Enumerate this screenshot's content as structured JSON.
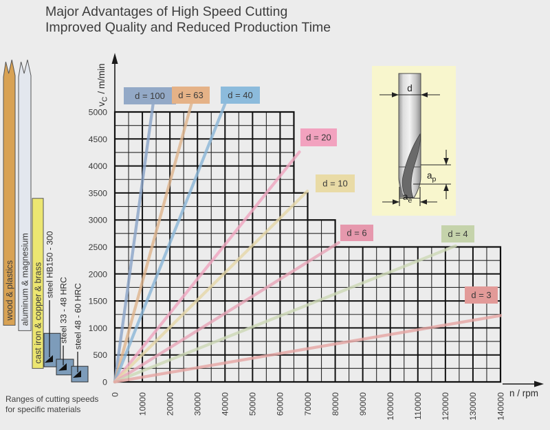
{
  "title": {
    "line1": "Major Advantages of High Speed Cutting",
    "line2": "Improved Quality and Reduced Production Time"
  },
  "axes": {
    "y_label": {
      "base": "v",
      "sub": "C",
      "unit": "/ m/min"
    },
    "x_label": "n / rpm",
    "y_ticks": [
      0,
      500,
      1000,
      1500,
      2000,
      2500,
      3000,
      3500,
      4000,
      4500,
      5000
    ],
    "x_ticks": [
      0,
      10000,
      20000,
      30000,
      40000,
      50000,
      60000,
      70000,
      80000,
      90000,
      100000,
      110000,
      120000,
      130000,
      140000
    ]
  },
  "chart_data": {
    "type": "line",
    "title": "Cutting speed vs spindle speed for tool diameters",
    "xlabel": "n / rpm",
    "ylabel": "vC / m/min",
    "xlim": [
      0,
      140000
    ],
    "ylim": [
      0,
      5000
    ],
    "x_minor_step": 5000,
    "x_major_step": 10000,
    "y_minor_step": 250,
    "y_major_step": 500,
    "grid": "both",
    "plot_top_boundary": [
      [
        0,
        5000
      ],
      [
        65000,
        5000
      ],
      [
        65000,
        3500
      ],
      [
        70000,
        3500
      ],
      [
        70000,
        3000
      ],
      [
        80000,
        3000
      ],
      [
        80000,
        2500
      ],
      [
        140000,
        2500
      ]
    ],
    "series": [
      {
        "label": "d = 100",
        "d_mm": 100,
        "start": [
          0,
          0
        ],
        "end": [
          13900,
          5150
        ],
        "line_color": "#8aa4c8",
        "label_bg": "#93a9c7"
      },
      {
        "label": "d = 63",
        "d_mm": 63,
        "start": [
          0,
          0
        ],
        "end": [
          27800,
          5150
        ],
        "line_color": "#dfb48c",
        "label_bg": "#e5b287"
      },
      {
        "label": "d = 40",
        "d_mm": 40,
        "start": [
          0,
          0
        ],
        "end": [
          40000,
          5150
        ],
        "line_color": "#8ab6d8",
        "label_bg": "#8cbbdc"
      },
      {
        "label": "d = 20",
        "d_mm": 20,
        "start": [
          0,
          0
        ],
        "end": [
          67000,
          4260
        ],
        "line_color": "#f0a6c0",
        "label_bg": "#f2a2bf"
      },
      {
        "label": "d = 10",
        "d_mm": 10,
        "start": [
          0,
          0
        ],
        "end": [
          69900,
          3535
        ],
        "line_color": "#e6d8a8",
        "label_bg": "#e9dba6"
      },
      {
        "label": "d = 6",
        "d_mm": 6,
        "start": [
          0,
          0
        ],
        "end": [
          81300,
          2580
        ],
        "line_color": "#e9a6b8",
        "label_bg": "#e698ad"
      },
      {
        "label": "d = 4",
        "d_mm": 4,
        "start": [
          0,
          0
        ],
        "end": [
          123700,
          2520
        ],
        "line_color": "#cdd9b6",
        "label_bg": "#c5d3ab"
      },
      {
        "label": "d = 3",
        "d_mm": 3,
        "start": [
          0,
          0
        ],
        "end": [
          140000,
          1230
        ],
        "line_color": "#e6a5a3",
        "label_bg": "#e29a98"
      }
    ]
  },
  "materials_legend": {
    "caption_line1": "Ranges of cutting speeds",
    "caption_line2": "for specific materials",
    "items": [
      {
        "label": "wood & plastics",
        "style": "bar",
        "vc_min": 1050,
        "vc_max": 5000,
        "exceeds_scale": true,
        "fill": "#d8a254"
      },
      {
        "label": "aluminum & magnesium",
        "style": "bar",
        "vc_min": 950,
        "vc_max": 5000,
        "exceeds_scale": true,
        "fill": "#e3e7ee"
      },
      {
        "label": "cast iron & copper & brass",
        "style": "bar",
        "vc_min": 250,
        "vc_max": 3400,
        "exceeds_scale": false,
        "fill": "#ece671"
      },
      {
        "label": "steel HB150 - 300",
        "style": "box",
        "vc_min": 280,
        "vc_max": 900,
        "exceeds_scale": false,
        "fill": "#7d9cba"
      },
      {
        "label": "steel 33 - 48 HRC",
        "style": "box",
        "vc_min": 130,
        "vc_max": 420,
        "exceeds_scale": false,
        "fill": "#7d9cba"
      },
      {
        "label": "steel 48 - 60 HRC",
        "style": "box",
        "vc_min": 0,
        "vc_max": 290,
        "exceeds_scale": false,
        "fill": "#7d9cba"
      }
    ]
  },
  "inset": {
    "d_label": "d",
    "ap_base": "a",
    "ap_sub": "p",
    "ae_base": "a",
    "ae_sub": "e"
  }
}
